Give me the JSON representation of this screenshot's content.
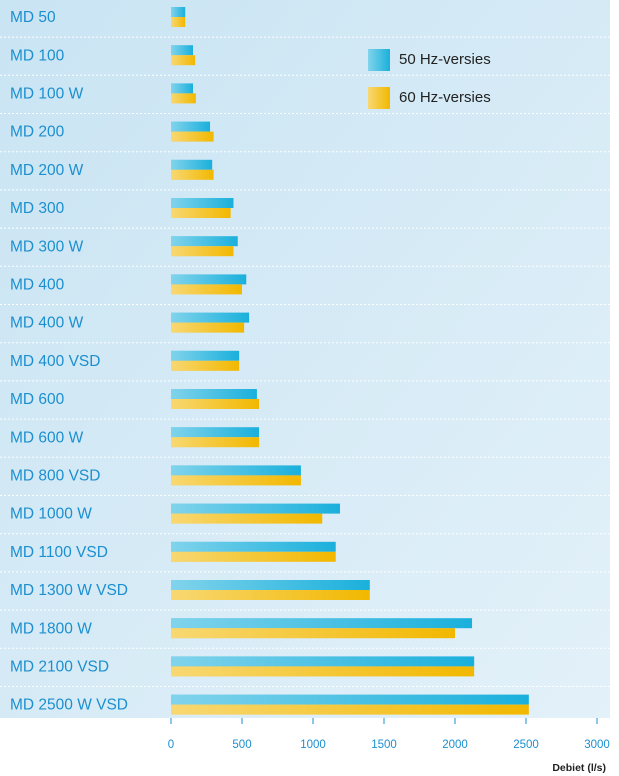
{
  "chart_data": {
    "type": "barh",
    "categories": [
      "MD 50",
      "MD 100",
      "MD 100 W",
      "MD 200",
      "MD 200 W",
      "MD 300",
      "MD 300 W",
      "MD 400",
      "MD 400 W",
      "MD 400 VSD",
      "MD 600",
      "MD 600 W",
      "MD 800 VSD",
      "MD 1000 W",
      "MD 1100 VSD",
      "MD 1300 W VSD",
      "MD 1800 W",
      "MD 2100 VSD",
      "MD 2500 W VSD"
    ],
    "series": [
      {
        "name": "50 Hz-versies",
        "color": "#1ab0dc",
        "values": [
          100,
          155,
          155,
          275,
          290,
          440,
          470,
          530,
          550,
          480,
          605,
          620,
          915,
          1190,
          1160,
          1400,
          2120,
          2135,
          2520
        ]
      },
      {
        "name": "60 Hz-versies",
        "color": "#f2b800",
        "values": [
          100,
          170,
          175,
          300,
          300,
          420,
          440,
          500,
          515,
          480,
          620,
          620,
          915,
          1065,
          1160,
          1400,
          2000,
          2135,
          2520
        ]
      }
    ],
    "xlabel": "Debiet (l/s)",
    "xlim": [
      0,
      3000
    ],
    "xticks": [
      0,
      500,
      1000,
      1500,
      2000,
      2500,
      3000
    ],
    "legend": "top-right"
  }
}
